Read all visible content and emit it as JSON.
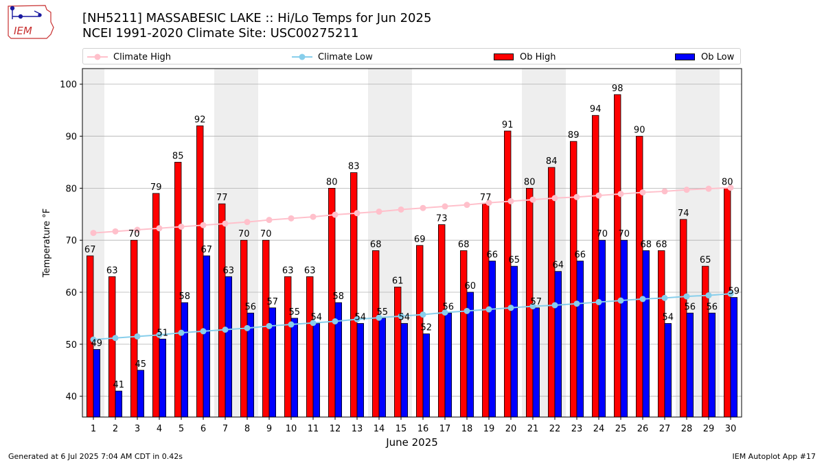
{
  "header": {
    "logo_text": "IEM",
    "title_line1": "[NH5211] MASSABESIC LAKE :: Hi/Lo Temps for Jun 2025",
    "title_line2": "NCEI 1991-2020 Climate Site: USC00275211"
  },
  "legend": {
    "climate_high": "Climate High",
    "climate_low": "Climate Low",
    "ob_high": "Ob High",
    "ob_low": "Ob Low"
  },
  "footer": {
    "left": "Generated at 6 Jul 2025 7:04 AM CDT in 0.42s",
    "right": "IEM Autoplot App #17"
  },
  "colors": {
    "ob_high": "#ff0000",
    "ob_low": "#0000ff",
    "climate_high": "#ffc0cb",
    "climate_low": "#87ceeb",
    "weekend_band": "#eeeeee",
    "grid": "#b0b0b0"
  },
  "chart_data": {
    "type": "bar",
    "xlabel": "June 2025",
    "ylabel": "Temperature °F",
    "ylim": [
      36,
      103
    ],
    "yticks": [
      40,
      50,
      60,
      70,
      80,
      90,
      100
    ],
    "grid": "horizontal",
    "legend_position": "top",
    "weekend_bands": [
      [
        1,
        1
      ],
      [
        7,
        8
      ],
      [
        14,
        15
      ],
      [
        21,
        22
      ],
      [
        28,
        29
      ]
    ],
    "categories": [
      1,
      2,
      3,
      4,
      5,
      6,
      7,
      8,
      9,
      10,
      11,
      12,
      13,
      14,
      15,
      16,
      17,
      18,
      19,
      20,
      21,
      22,
      23,
      24,
      25,
      26,
      27,
      28,
      29,
      30
    ],
    "series": [
      {
        "name": "Ob High",
        "kind": "bar",
        "values": [
          67,
          63,
          70,
          79,
          85,
          92,
          77,
          70,
          70,
          63,
          63,
          80,
          83,
          68,
          61,
          69,
          73,
          68,
          77,
          91,
          80,
          84,
          89,
          94,
          98,
          90,
          68,
          74,
          65,
          80
        ]
      },
      {
        "name": "Ob Low",
        "kind": "bar",
        "values": [
          49,
          41,
          45,
          51,
          58,
          67,
          63,
          56,
          57,
          55,
          54,
          58,
          54,
          55,
          54,
          52,
          56,
          60,
          66,
          65,
          57,
          64,
          66,
          70,
          70,
          68,
          54,
          56,
          56,
          59
        ]
      },
      {
        "name": "Climate High",
        "kind": "line",
        "values": [
          71.4,
          71.7,
          72.0,
          72.3,
          72.6,
          72.9,
          73.2,
          73.5,
          73.9,
          74.2,
          74.5,
          74.9,
          75.2,
          75.5,
          75.9,
          76.2,
          76.5,
          76.8,
          77.2,
          77.5,
          77.8,
          78.1,
          78.3,
          78.6,
          78.9,
          79.2,
          79.4,
          79.7,
          79.9,
          80.1
        ]
      },
      {
        "name": "Climate Low",
        "kind": "line",
        "values": [
          50.9,
          51.2,
          51.5,
          51.8,
          52.2,
          52.5,
          52.8,
          53.1,
          53.5,
          53.8,
          54.1,
          54.4,
          54.8,
          55.1,
          55.4,
          55.7,
          56.1,
          56.4,
          56.7,
          57.0,
          57.3,
          57.5,
          57.8,
          58.1,
          58.4,
          58.7,
          58.9,
          59.2,
          59.4,
          59.7
        ]
      }
    ]
  }
}
